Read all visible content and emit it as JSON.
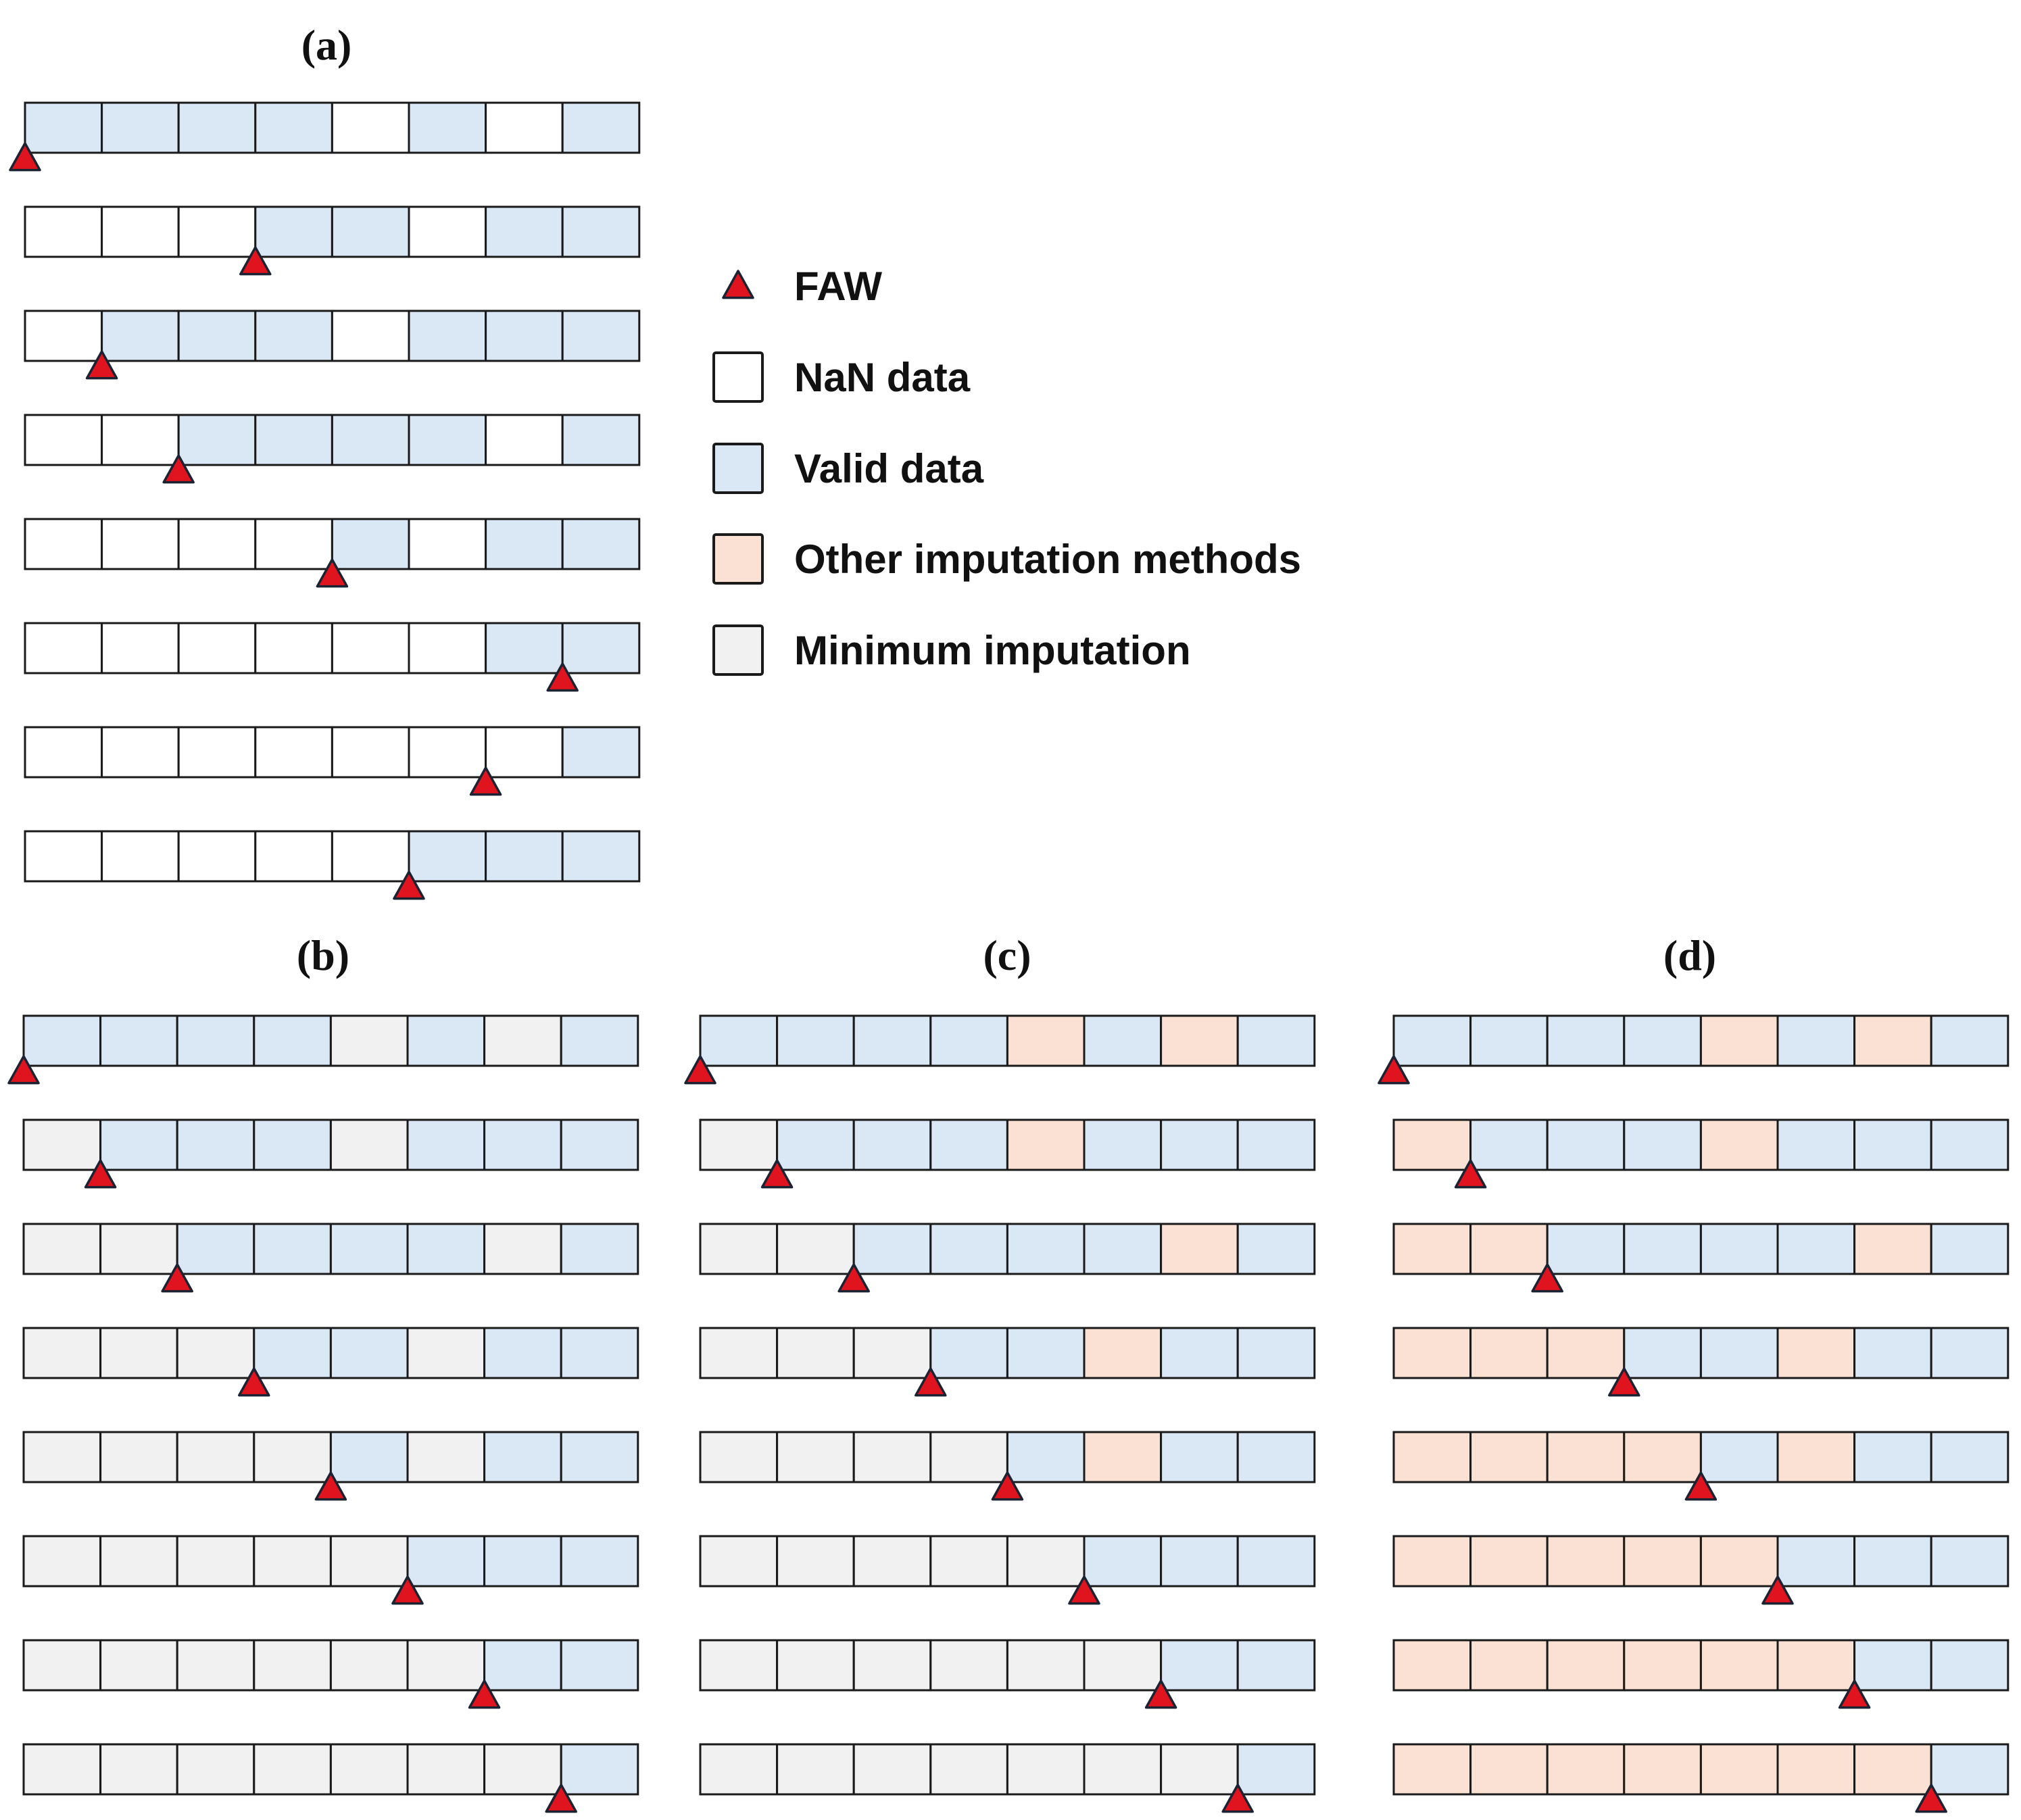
{
  "colors": {
    "nan": "#ffffff",
    "valid": "#dae8f6",
    "other": "#fbe1d3",
    "min": "#f1f1f1",
    "faw": "#e0141e",
    "border": "#1a1a1a"
  },
  "legend": {
    "items": [
      {
        "key": "faw",
        "label": "FAW",
        "icon": "faw-triangle-icon"
      },
      {
        "key": "nan",
        "label": "NaN data",
        "icon": "nan-swatch"
      },
      {
        "key": "valid",
        "label": "Valid data",
        "icon": "valid-swatch"
      },
      {
        "key": "other",
        "label": "Other imputation methods",
        "icon": "other-swatch"
      },
      {
        "key": "min",
        "label": "Minimum imputation",
        "icon": "min-swatch"
      }
    ]
  },
  "panels": [
    {
      "id": "a",
      "title": "(a)",
      "rows": [
        {
          "cells": [
            "valid",
            "valid",
            "valid",
            "valid",
            "nan",
            "valid",
            "nan",
            "valid"
          ],
          "faw": 0
        },
        {
          "cells": [
            "nan",
            "nan",
            "nan",
            "valid",
            "valid",
            "nan",
            "valid",
            "valid"
          ],
          "faw": 3
        },
        {
          "cells": [
            "nan",
            "valid",
            "valid",
            "valid",
            "nan",
            "valid",
            "valid",
            "valid"
          ],
          "faw": 1
        },
        {
          "cells": [
            "nan",
            "nan",
            "valid",
            "valid",
            "valid",
            "valid",
            "nan",
            "valid"
          ],
          "faw": 2
        },
        {
          "cells": [
            "nan",
            "nan",
            "nan",
            "nan",
            "valid",
            "nan",
            "valid",
            "valid"
          ],
          "faw": 4
        },
        {
          "cells": [
            "nan",
            "nan",
            "nan",
            "nan",
            "nan",
            "nan",
            "valid",
            "valid"
          ],
          "faw": 7
        },
        {
          "cells": [
            "nan",
            "nan",
            "nan",
            "nan",
            "nan",
            "nan",
            "nan",
            "valid"
          ],
          "faw": 6
        },
        {
          "cells": [
            "nan",
            "nan",
            "nan",
            "nan",
            "nan",
            "valid",
            "valid",
            "valid"
          ],
          "faw": 5
        }
      ]
    },
    {
      "id": "b",
      "title": "(b)",
      "rows": [
        {
          "cells": [
            "valid",
            "valid",
            "valid",
            "valid",
            "min",
            "valid",
            "min",
            "valid"
          ],
          "faw": 0
        },
        {
          "cells": [
            "min",
            "valid",
            "valid",
            "valid",
            "min",
            "valid",
            "valid",
            "valid"
          ],
          "faw": 1
        },
        {
          "cells": [
            "min",
            "min",
            "valid",
            "valid",
            "valid",
            "valid",
            "min",
            "valid"
          ],
          "faw": 2
        },
        {
          "cells": [
            "min",
            "min",
            "min",
            "valid",
            "valid",
            "min",
            "valid",
            "valid"
          ],
          "faw": 3
        },
        {
          "cells": [
            "min",
            "min",
            "min",
            "min",
            "valid",
            "min",
            "valid",
            "valid"
          ],
          "faw": 4
        },
        {
          "cells": [
            "min",
            "min",
            "min",
            "min",
            "min",
            "valid",
            "valid",
            "valid"
          ],
          "faw": 5
        },
        {
          "cells": [
            "min",
            "min",
            "min",
            "min",
            "min",
            "min",
            "valid",
            "valid"
          ],
          "faw": 6
        },
        {
          "cells": [
            "min",
            "min",
            "min",
            "min",
            "min",
            "min",
            "min",
            "valid"
          ],
          "faw": 7
        }
      ]
    },
    {
      "id": "c",
      "title": "(c)",
      "rows": [
        {
          "cells": [
            "valid",
            "valid",
            "valid",
            "valid",
            "other",
            "valid",
            "other",
            "valid"
          ],
          "faw": 0
        },
        {
          "cells": [
            "min",
            "valid",
            "valid",
            "valid",
            "other",
            "valid",
            "valid",
            "valid"
          ],
          "faw": 1
        },
        {
          "cells": [
            "min",
            "min",
            "valid",
            "valid",
            "valid",
            "valid",
            "other",
            "valid"
          ],
          "faw": 2
        },
        {
          "cells": [
            "min",
            "min",
            "min",
            "valid",
            "valid",
            "other",
            "valid",
            "valid"
          ],
          "faw": 3
        },
        {
          "cells": [
            "min",
            "min",
            "min",
            "min",
            "valid",
            "other",
            "valid",
            "valid"
          ],
          "faw": 4
        },
        {
          "cells": [
            "min",
            "min",
            "min",
            "min",
            "min",
            "valid",
            "valid",
            "valid"
          ],
          "faw": 5
        },
        {
          "cells": [
            "min",
            "min",
            "min",
            "min",
            "min",
            "min",
            "valid",
            "valid"
          ],
          "faw": 6
        },
        {
          "cells": [
            "min",
            "min",
            "min",
            "min",
            "min",
            "min",
            "min",
            "valid"
          ],
          "faw": 7
        }
      ]
    },
    {
      "id": "d",
      "title": "(d)",
      "rows": [
        {
          "cells": [
            "valid",
            "valid",
            "valid",
            "valid",
            "other",
            "valid",
            "other",
            "valid"
          ],
          "faw": 0
        },
        {
          "cells": [
            "other",
            "valid",
            "valid",
            "valid",
            "other",
            "valid",
            "valid",
            "valid"
          ],
          "faw": 1
        },
        {
          "cells": [
            "other",
            "other",
            "valid",
            "valid",
            "valid",
            "valid",
            "other",
            "valid"
          ],
          "faw": 2
        },
        {
          "cells": [
            "other",
            "other",
            "other",
            "valid",
            "valid",
            "other",
            "valid",
            "valid"
          ],
          "faw": 3
        },
        {
          "cells": [
            "other",
            "other",
            "other",
            "other",
            "valid",
            "other",
            "valid",
            "valid"
          ],
          "faw": 4
        },
        {
          "cells": [
            "other",
            "other",
            "other",
            "other",
            "other",
            "valid",
            "valid",
            "valid"
          ],
          "faw": 5
        },
        {
          "cells": [
            "other",
            "other",
            "other",
            "other",
            "other",
            "other",
            "valid",
            "valid"
          ],
          "faw": 6
        },
        {
          "cells": [
            "other",
            "other",
            "other",
            "other",
            "other",
            "other",
            "other",
            "valid"
          ],
          "faw": 7
        }
      ]
    }
  ]
}
